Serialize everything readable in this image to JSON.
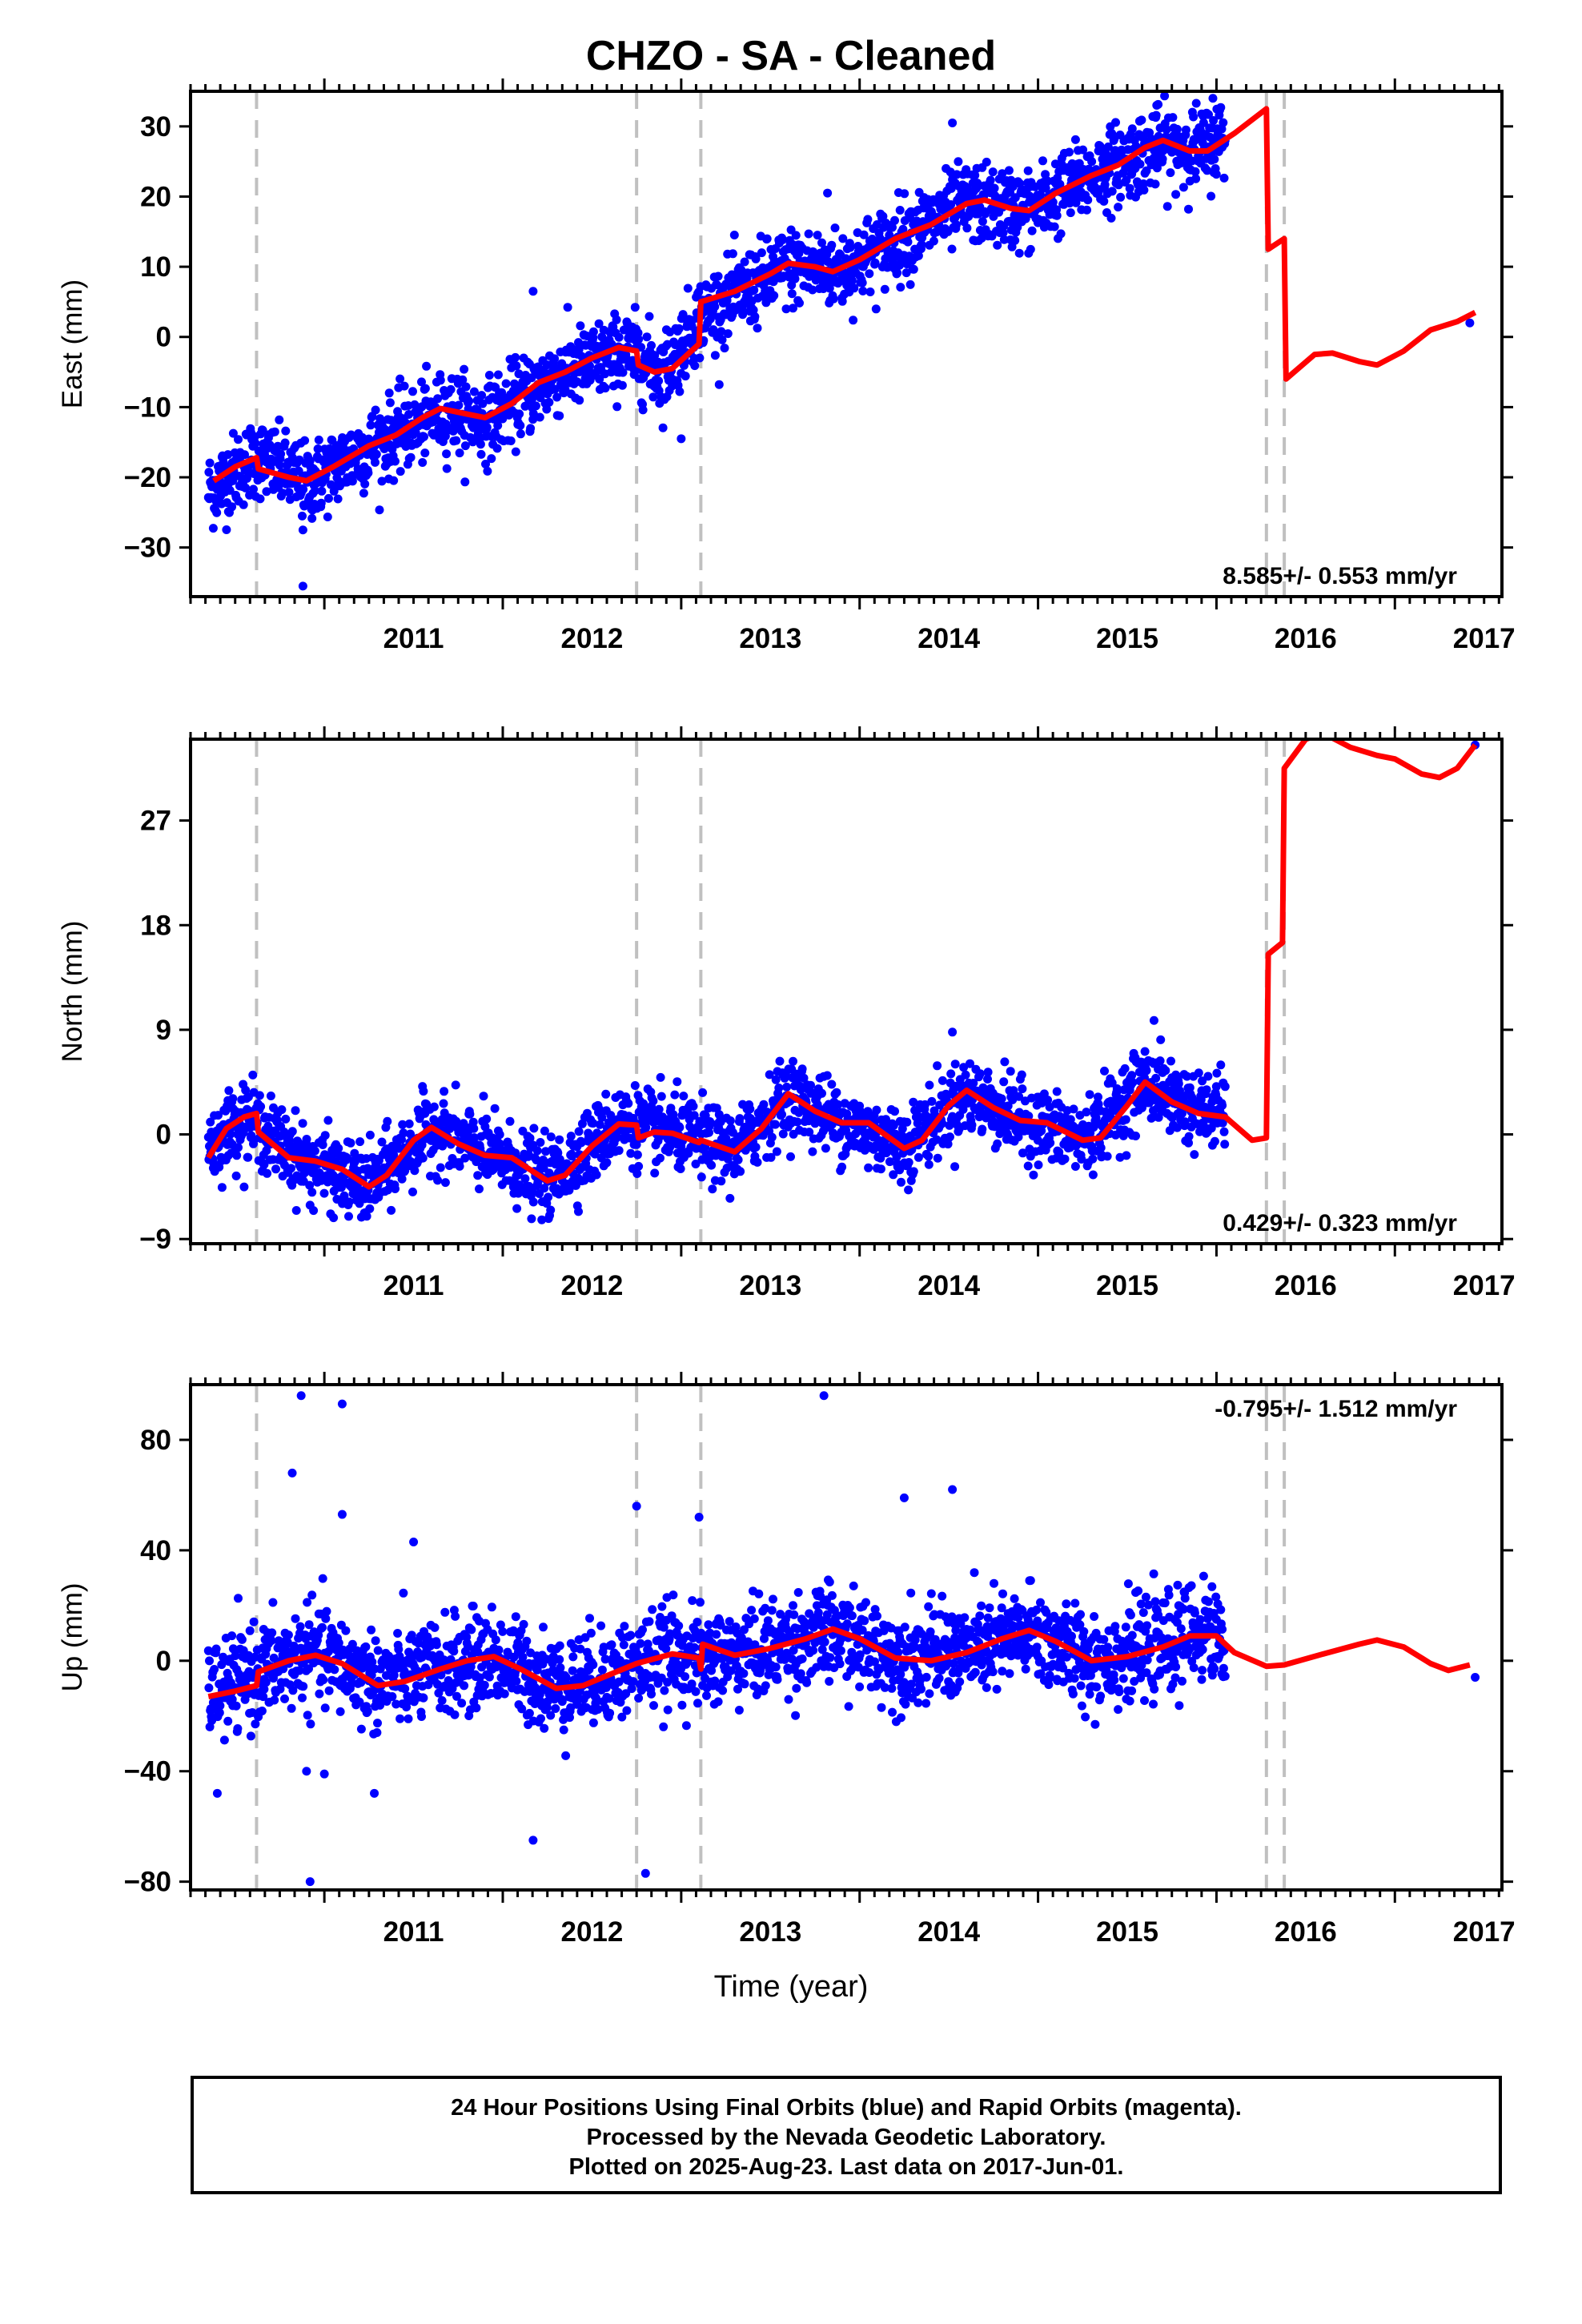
{
  "title": "CHZO  - SA - Cleaned",
  "xlabel": "Time (year)",
  "footer": {
    "line1": "24 Hour Positions Using Final Orbits (blue) and Rapid Orbits (magenta).",
    "line2": "Processed by the Nevada Geodetic Laboratory.",
    "line3": "Plotted on 2025-Aug-23. Last data on 2017-Jun-01."
  },
  "colors": {
    "points": "#0000ff",
    "model": "#ff0000",
    "events": "#c0c0c0",
    "frame": "#000000"
  },
  "chart_data": [
    {
      "type": "scatter",
      "name": "east",
      "ylabel": "East (mm)",
      "rate": "8.585+/- 0.553 mm/yr",
      "xlim": [
        2010.25,
        2017.6
      ],
      "ylim": [
        -37,
        35
      ],
      "yticks": [
        -30,
        -20,
        -10,
        0,
        10,
        20,
        30
      ],
      "ytick_labels": [
        "−30",
        "−20",
        "−10",
        "0",
        "10",
        "20",
        "30"
      ],
      "xticks": [
        2011,
        2012,
        2013,
        2014,
        2015,
        2016,
        2017
      ],
      "events": [
        2010.62,
        2012.75,
        2013.11,
        2016.28,
        2016.38
      ],
      "rate_position": "bottom-right",
      "model_line": [
        [
          2010.38,
          -20.5
        ],
        [
          2010.5,
          -18.5
        ],
        [
          2010.62,
          -17.2
        ],
        [
          2010.63,
          -18.8
        ],
        [
          2010.8,
          -20
        ],
        [
          2010.9,
          -20.5
        ],
        [
          2011.05,
          -18.5
        ],
        [
          2011.25,
          -15.5
        ],
        [
          2011.4,
          -14
        ],
        [
          2011.55,
          -11.5
        ],
        [
          2011.65,
          -10.2
        ],
        [
          2011.8,
          -11
        ],
        [
          2011.9,
          -11.5
        ],
        [
          2012.05,
          -9.5
        ],
        [
          2012.2,
          -6.5
        ],
        [
          2012.35,
          -5
        ],
        [
          2012.5,
          -3
        ],
        [
          2012.65,
          -1.5
        ],
        [
          2012.75,
          -2
        ],
        [
          2012.76,
          -4
        ],
        [
          2012.85,
          -5
        ],
        [
          2012.95,
          -4.5
        ],
        [
          2013.1,
          -1
        ],
        [
          2013.11,
          5
        ],
        [
          2013.3,
          6.5
        ],
        [
          2013.5,
          9
        ],
        [
          2013.6,
          10.5
        ],
        [
          2013.75,
          10
        ],
        [
          2013.85,
          9.3
        ],
        [
          2014.0,
          11
        ],
        [
          2014.2,
          14
        ],
        [
          2014.4,
          16
        ],
        [
          2014.6,
          19
        ],
        [
          2014.7,
          19.5
        ],
        [
          2014.85,
          18.3
        ],
        [
          2014.95,
          18
        ],
        [
          2015.1,
          20.5
        ],
        [
          2015.3,
          23
        ],
        [
          2015.45,
          24.5
        ],
        [
          2015.6,
          27
        ],
        [
          2015.7,
          28
        ],
        [
          2015.85,
          26.5
        ],
        [
          2015.95,
          26.5
        ],
        [
          2016.1,
          29
        ],
        [
          2016.28,
          32.5
        ],
        [
          2016.29,
          12.5
        ],
        [
          2016.38,
          14
        ],
        [
          2016.39,
          -6
        ],
        [
          2016.55,
          -2.5
        ],
        [
          2016.65,
          -2.3
        ],
        [
          2016.8,
          -3.5
        ],
        [
          2016.9,
          -4
        ],
        [
          2017.05,
          -2
        ],
        [
          2017.2,
          1
        ],
        [
          2017.35,
          2.2
        ],
        [
          2017.45,
          3.5
        ]
      ],
      "points_trend": [
        [
          2010.35,
          -22
        ],
        [
          2010.62,
          -17
        ],
        [
          2010.9,
          -21
        ],
        [
          2011.3,
          -15
        ],
        [
          2011.7,
          -10.5
        ],
        [
          2011.9,
          -12
        ],
        [
          2012.3,
          -5.5
        ],
        [
          2012.7,
          -2
        ],
        [
          2012.9,
          -5
        ],
        [
          2013.11,
          3
        ],
        [
          2013.6,
          10
        ],
        [
          2013.9,
          9.5
        ],
        [
          2014.3,
          15
        ],
        [
          2014.6,
          19
        ],
        [
          2014.95,
          18
        ],
        [
          2015.3,
          23
        ],
        [
          2015.65,
          27
        ],
        [
          2015.95,
          27
        ],
        [
          2016.05,
          29
        ]
      ],
      "points_scatter": 2.8,
      "extra_points": [
        [
          2010.88,
          -35.5
        ],
        [
          2010.88,
          -27.5
        ],
        [
          2012.17,
          6.5
        ],
        [
          2013.0,
          -14.5
        ],
        [
          2013.82,
          20.5
        ],
        [
          2014.52,
          30.5
        ],
        [
          2015.98,
          34
        ],
        [
          2017.42,
          2
        ]
      ]
    },
    {
      "type": "scatter",
      "name": "north",
      "ylabel": "North (mm)",
      "rate": "0.429+/- 0.323 mm/yr",
      "xlim": [
        2010.25,
        2017.6
      ],
      "ylim": [
        -9.4,
        34
      ],
      "yticks": [
        -9,
        0,
        9,
        18,
        27
      ],
      "ytick_labels": [
        "−9",
        "0",
        "9",
        "18",
        "27"
      ],
      "xticks": [
        2011,
        2012,
        2013,
        2014,
        2015,
        2016,
        2017
      ],
      "events": [
        2010.62,
        2012.75,
        2013.11,
        2016.28,
        2016.38
      ],
      "rate_position": "bottom-right",
      "model_line": [
        [
          2010.35,
          -2
        ],
        [
          2010.45,
          0.5
        ],
        [
          2010.55,
          1.5
        ],
        [
          2010.62,
          1.8
        ],
        [
          2010.63,
          0.2
        ],
        [
          2010.8,
          -2
        ],
        [
          2010.95,
          -2.3
        ],
        [
          2011.1,
          -3
        ],
        [
          2011.25,
          -4.5
        ],
        [
          2011.35,
          -3.5
        ],
        [
          2011.5,
          -0.5
        ],
        [
          2011.6,
          0.6
        ],
        [
          2011.75,
          -0.8
        ],
        [
          2011.9,
          -1.8
        ],
        [
          2012.05,
          -2
        ],
        [
          2012.25,
          -4
        ],
        [
          2012.35,
          -3.5
        ],
        [
          2012.5,
          -1
        ],
        [
          2012.65,
          0.9
        ],
        [
          2012.75,
          0.8
        ],
        [
          2012.76,
          -0.3
        ],
        [
          2012.85,
          0.2
        ],
        [
          2012.95,
          0.1
        ],
        [
          2013.1,
          -0.7
        ],
        [
          2013.11,
          -0.5
        ],
        [
          2013.3,
          -1.5
        ],
        [
          2013.45,
          0.5
        ],
        [
          2013.6,
          3.5
        ],
        [
          2013.75,
          2
        ],
        [
          2013.9,
          1
        ],
        [
          2014.05,
          1
        ],
        [
          2014.25,
          -1.2
        ],
        [
          2014.35,
          -0.5
        ],
        [
          2014.5,
          2.5
        ],
        [
          2014.6,
          3.8
        ],
        [
          2014.75,
          2.3
        ],
        [
          2014.9,
          1.2
        ],
        [
          2015.05,
          1
        ],
        [
          2015.25,
          -0.5
        ],
        [
          2015.35,
          -0.3
        ],
        [
          2015.5,
          2.5
        ],
        [
          2015.6,
          4.5
        ],
        [
          2015.75,
          2.8
        ],
        [
          2015.9,
          1.8
        ],
        [
          2016.05,
          1.5
        ],
        [
          2016.2,
          -0.5
        ],
        [
          2016.28,
          -0.3
        ],
        [
          2016.29,
          15.5
        ],
        [
          2016.37,
          16.5
        ],
        [
          2016.38,
          31.5
        ],
        [
          2016.5,
          34
        ],
        [
          2016.6,
          34.5
        ],
        [
          2016.75,
          33.3
        ],
        [
          2016.9,
          32.6
        ],
        [
          2017.0,
          32.3
        ],
        [
          2017.15,
          31
        ],
        [
          2017.25,
          30.7
        ],
        [
          2017.35,
          31.5
        ],
        [
          2017.45,
          33.5
        ]
      ],
      "points_trend": [
        [
          2010.35,
          -1
        ],
        [
          2010.55,
          1.5
        ],
        [
          2010.9,
          -2.5
        ],
        [
          2011.25,
          -4.5
        ],
        [
          2011.6,
          0.5
        ],
        [
          2011.9,
          -1.5
        ],
        [
          2012.25,
          -4
        ],
        [
          2012.65,
          1
        ],
        [
          2013.0,
          0
        ],
        [
          2013.3,
          -1.5
        ],
        [
          2013.6,
          3.5
        ],
        [
          2013.9,
          1
        ],
        [
          2014.25,
          -1
        ],
        [
          2014.6,
          3.5
        ],
        [
          2014.9,
          1.2
        ],
        [
          2015.25,
          -0.5
        ],
        [
          2015.6,
          4.5
        ],
        [
          2015.9,
          2
        ],
        [
          2016.05,
          2
        ]
      ],
      "points_scatter": 1.6,
      "extra_points": [
        [
          2014.52,
          8.8
        ],
        [
          2015.65,
          9.8
        ],
        [
          2017.45,
          33.5
        ]
      ]
    },
    {
      "type": "scatter",
      "name": "up",
      "ylabel": "Up (mm)",
      "rate": "-0.795+/- 1.512 mm/yr",
      "xlim": [
        2010.25,
        2017.6
      ],
      "ylim": [
        -83,
        100
      ],
      "yticks": [
        -80,
        -40,
        0,
        40,
        80
      ],
      "ytick_labels": [
        "−80",
        "−40",
        "0",
        "40",
        "80"
      ],
      "xticks": [
        2011,
        2012,
        2013,
        2014,
        2015,
        2016,
        2017
      ],
      "events": [
        2010.62,
        2012.75,
        2013.11,
        2016.28,
        2016.38
      ],
      "rate_position": "top-right",
      "model_line": [
        [
          2010.35,
          -13
        ],
        [
          2010.5,
          -11
        ],
        [
          2010.62,
          -9
        ],
        [
          2010.63,
          -4
        ],
        [
          2010.8,
          0
        ],
        [
          2010.95,
          2
        ],
        [
          2011.1,
          -1
        ],
        [
          2011.3,
          -9
        ],
        [
          2011.45,
          -7.5
        ],
        [
          2011.65,
          -3
        ],
        [
          2011.8,
          0
        ],
        [
          2011.95,
          1.5
        ],
        [
          2012.1,
          -3
        ],
        [
          2012.3,
          -10
        ],
        [
          2012.45,
          -9
        ],
        [
          2012.6,
          -5
        ],
        [
          2012.75,
          -1
        ],
        [
          2012.95,
          2.5
        ],
        [
          2013.1,
          1
        ],
        [
          2013.11,
          -3
        ],
        [
          2013.12,
          6
        ],
        [
          2013.3,
          2
        ],
        [
          2013.5,
          4.5
        ],
        [
          2013.7,
          8
        ],
        [
          2013.85,
          11.5
        ],
        [
          2014.0,
          8
        ],
        [
          2014.2,
          1
        ],
        [
          2014.4,
          0
        ],
        [
          2014.6,
          3
        ],
        [
          2014.8,
          8
        ],
        [
          2014.95,
          11
        ],
        [
          2015.1,
          7
        ],
        [
          2015.3,
          0
        ],
        [
          2015.5,
          1.5
        ],
        [
          2015.7,
          5
        ],
        [
          2015.85,
          9
        ],
        [
          2016.0,
          9
        ],
        [
          2016.1,
          3
        ],
        [
          2016.28,
          -2
        ],
        [
          2016.38,
          -1.5
        ],
        [
          2016.6,
          2.5
        ],
        [
          2016.8,
          6
        ],
        [
          2016.9,
          7.5
        ],
        [
          2017.05,
          5
        ],
        [
          2017.2,
          -1
        ],
        [
          2017.3,
          -3.5
        ],
        [
          2017.42,
          -1.5
        ]
      ],
      "points_trend": [
        [
          2010.35,
          -12
        ],
        [
          2010.62,
          -5
        ],
        [
          2010.95,
          3
        ],
        [
          2011.3,
          -8
        ],
        [
          2011.65,
          -3
        ],
        [
          2011.95,
          1
        ],
        [
          2012.3,
          -9
        ],
        [
          2012.6,
          -5
        ],
        [
          2012.95,
          3
        ],
        [
          2013.11,
          0
        ],
        [
          2013.5,
          4.5
        ],
        [
          2013.85,
          10
        ],
        [
          2014.2,
          1
        ],
        [
          2014.6,
          3
        ],
        [
          2014.95,
          10
        ],
        [
          2015.3,
          0
        ],
        [
          2015.7,
          5
        ],
        [
          2015.95,
          12
        ],
        [
          2016.05,
          5
        ]
      ],
      "points_scatter": 8.5,
      "extra_points": [
        [
          2010.87,
          96
        ],
        [
          2011.1,
          93
        ],
        [
          2010.82,
          68
        ],
        [
          2011.1,
          53
        ],
        [
          2011.5,
          43
        ],
        [
          2011.28,
          -48
        ],
        [
          2010.4,
          -48
        ],
        [
          2010.9,
          -40
        ],
        [
          2011.0,
          -41
        ],
        [
          2012.17,
          -65
        ],
        [
          2012.8,
          -77
        ],
        [
          2010.92,
          -80
        ],
        [
          2012.75,
          56
        ],
        [
          2013.1,
          52
        ],
        [
          2013.8,
          96
        ],
        [
          2014.25,
          59
        ],
        [
          2014.52,
          62
        ],
        [
          2017.45,
          -6
        ]
      ]
    }
  ]
}
